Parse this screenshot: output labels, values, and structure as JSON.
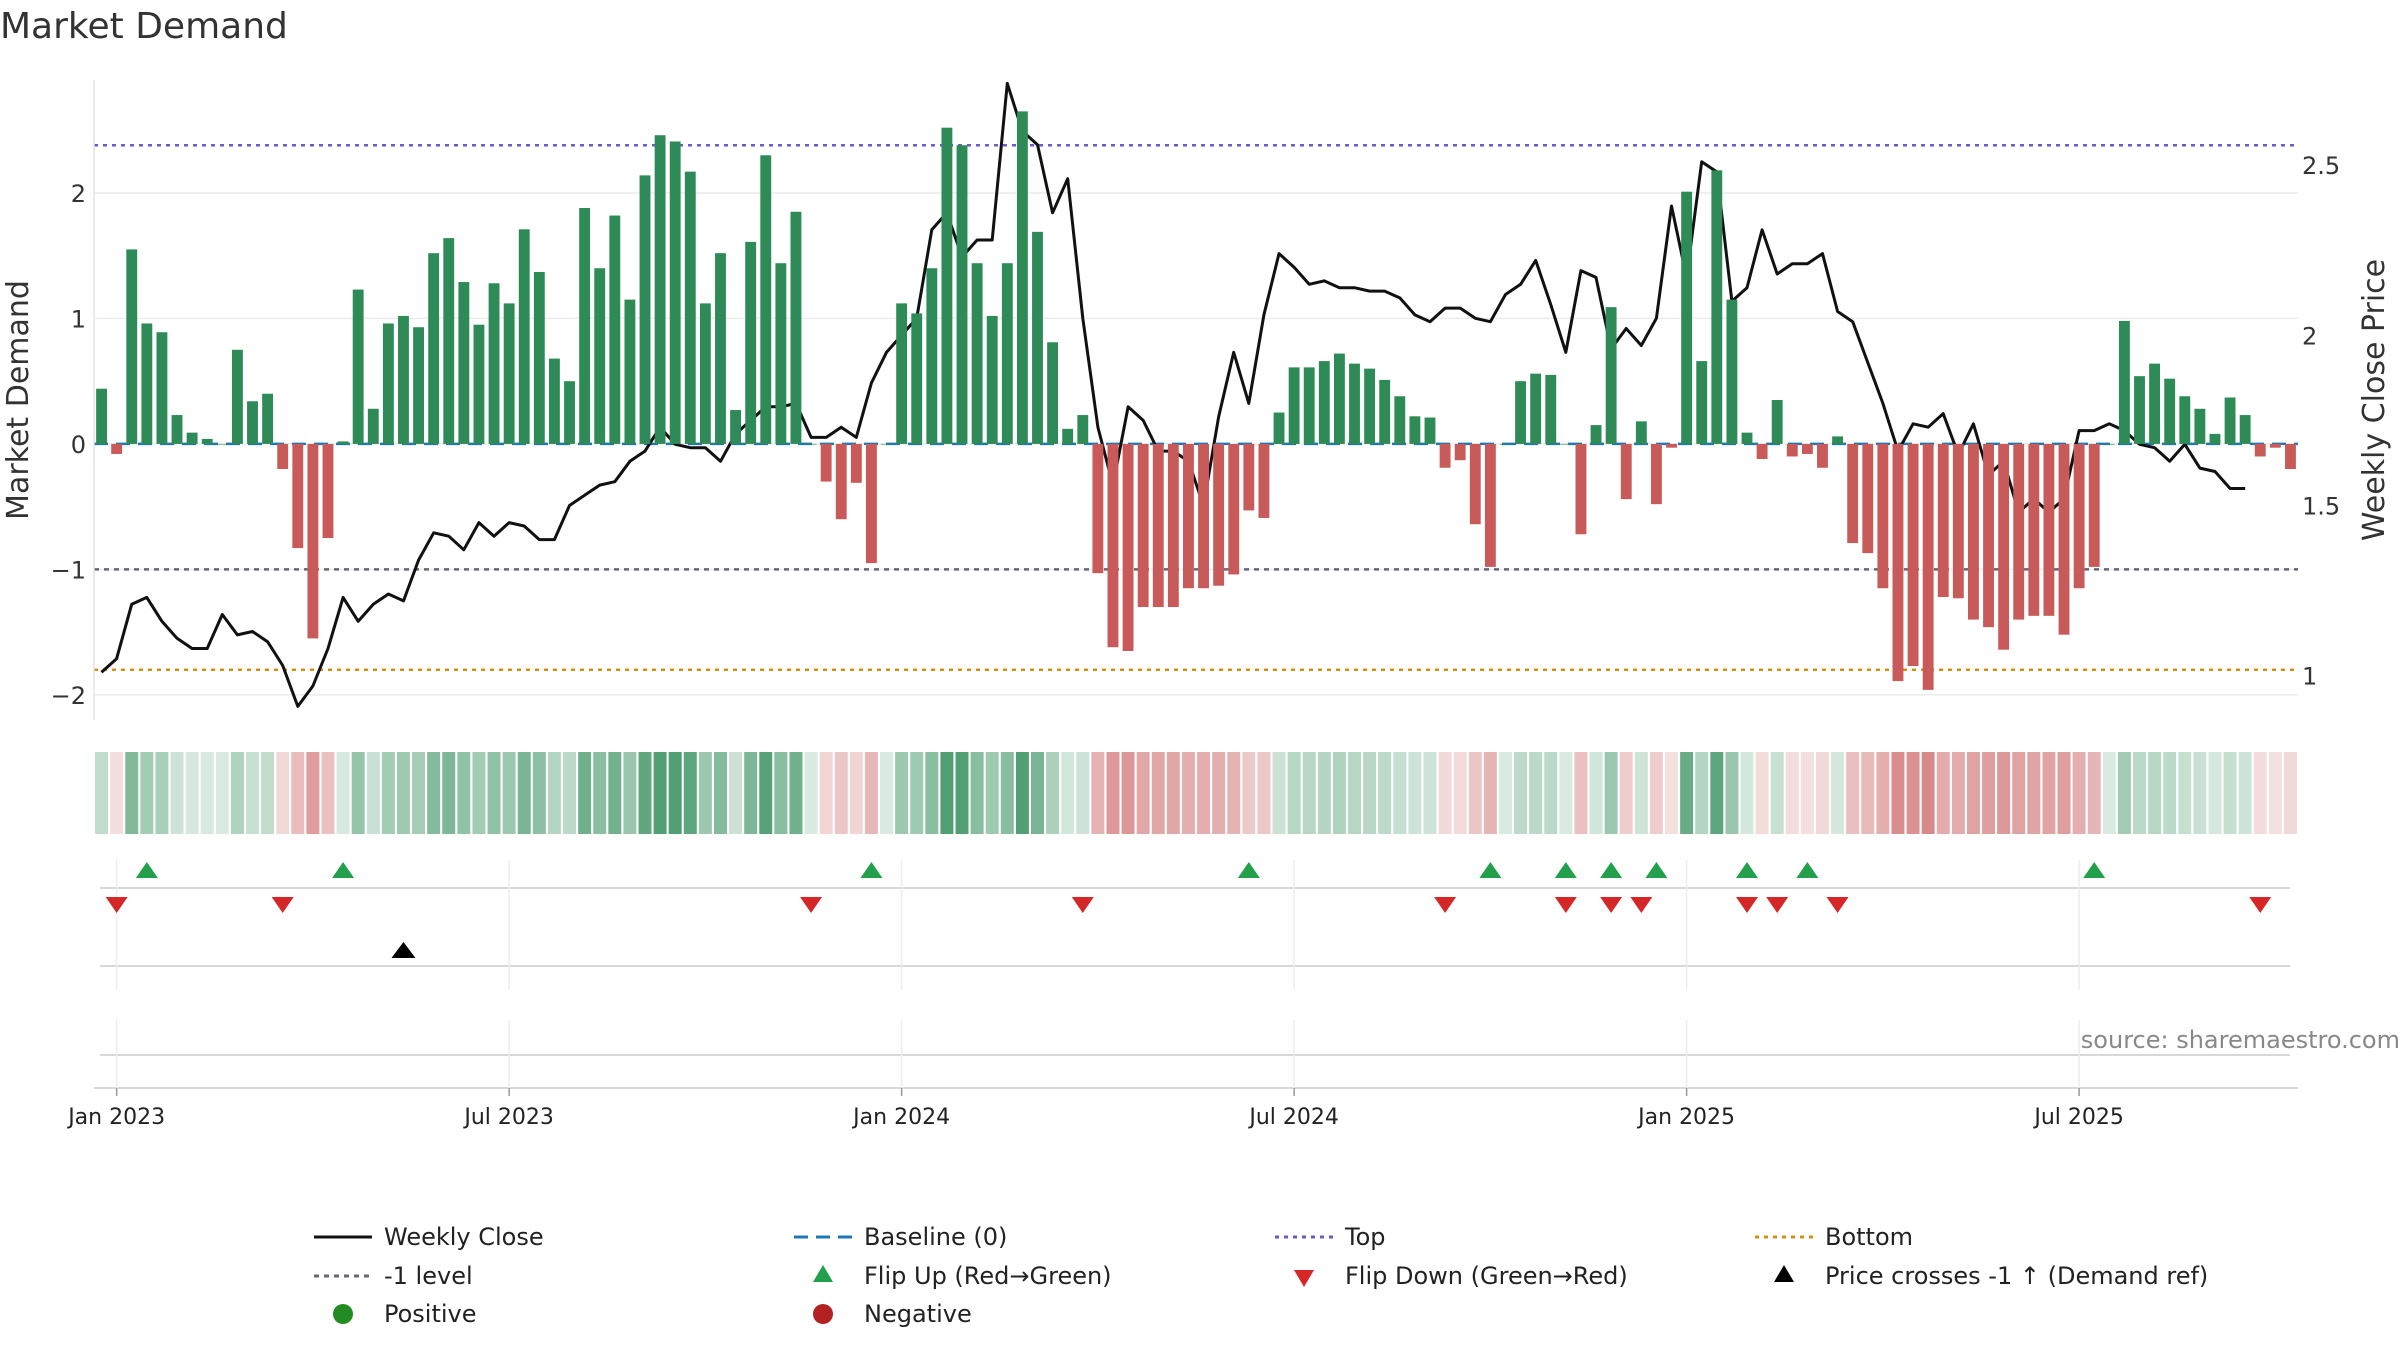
{
  "chart_data": {
    "type": "bar",
    "title": "Market Demand",
    "ylabel_left": "Market Demand",
    "ylabel_right": "Weekly Close Price",
    "ylim_left": [
      -2.2,
      2.9
    ],
    "ylim_right": [
      0.87,
      2.75
    ],
    "yticks_left": [
      -2,
      -1,
      0,
      1,
      2
    ],
    "yticks_left_labels": [
      "−2",
      "−1",
      "0",
      "1",
      "2"
    ],
    "yticks_right": [
      1,
      1.5,
      2,
      2.5
    ],
    "yticks_right_labels": [
      "1",
      "1.5",
      "2",
      "2.5"
    ],
    "x_tick_labels": [
      "Jan 2023",
      "Jul 2023",
      "Jan 2024",
      "Jul 2024",
      "Jan 2025",
      "Jul 2025"
    ],
    "x_tick_positions_week": [
      1,
      27,
      53,
      79,
      105,
      131
    ],
    "reference_lines": {
      "top": 2.38,
      "minus1": -1.0,
      "bottom": -1.8,
      "baseline": 0
    },
    "demand": [
      0.44,
      -0.08,
      1.55,
      0.96,
      0.89,
      0.23,
      0.09,
      0.04,
      0.0,
      0.75,
      0.34,
      0.4,
      -0.2,
      -0.83,
      -1.55,
      -0.75,
      0.02,
      1.23,
      0.28,
      0.96,
      1.02,
      0.93,
      1.52,
      1.64,
      1.29,
      0.95,
      1.28,
      1.12,
      1.71,
      1.37,
      0.68,
      0.5,
      1.88,
      1.4,
      1.82,
      1.15,
      2.14,
      2.46,
      2.41,
      2.17,
      1.12,
      1.52,
      0.27,
      1.61,
      2.3,
      1.44,
      1.85,
      0.0,
      -0.3,
      -0.6,
      -0.31,
      -0.95,
      0.0,
      1.12,
      1.04,
      1.4,
      2.52,
      2.38,
      1.44,
      1.02,
      1.44,
      2.65,
      1.69,
      0.81,
      0.12,
      0.23,
      -1.03,
      -1.62,
      -1.65,
      -1.3,
      -1.3,
      -1.3,
      -1.15,
      -1.15,
      -1.13,
      -1.04,
      -0.53,
      -0.59,
      0.25,
      0.61,
      0.61,
      0.66,
      0.72,
      0.64,
      0.6,
      0.51,
      0.38,
      0.22,
      0.21,
      -0.19,
      -0.13,
      -0.64,
      -0.98,
      0.0,
      0.5,
      0.56,
      0.55,
      0.0,
      -0.72,
      0.15,
      1.09,
      -0.44,
      0.18,
      -0.48,
      -0.03,
      2.01,
      0.66,
      2.18,
      1.15,
      0.09,
      -0.12,
      0.35,
      -0.1,
      -0.08,
      -0.19,
      0.06,
      -0.79,
      -0.87,
      -1.15,
      -1.89,
      -1.77,
      -1.96,
      -1.22,
      -1.23,
      -1.4,
      -1.46,
      -1.64,
      -1.4,
      -1.37,
      -1.37,
      -1.52,
      -1.15,
      -0.98,
      0.0,
      0.98,
      0.54,
      0.64,
      0.52,
      0.38,
      0.28,
      0.08,
      0.37,
      0.23,
      -0.1,
      -0.03,
      -0.2
    ],
    "close": [
      1.01,
      1.05,
      1.21,
      1.23,
      1.16,
      1.11,
      1.08,
      1.08,
      1.18,
      1.12,
      1.13,
      1.1,
      1.03,
      0.91,
      0.97,
      1.08,
      1.23,
      1.16,
      1.21,
      1.24,
      1.22,
      1.34,
      1.42,
      1.41,
      1.37,
      1.45,
      1.41,
      1.45,
      1.44,
      1.4,
      1.4,
      1.5,
      1.53,
      1.56,
      1.57,
      1.63,
      1.66,
      1.73,
      1.68,
      1.67,
      1.67,
      1.63,
      1.71,
      1.75,
      1.79,
      1.79,
      1.8,
      1.7,
      1.7,
      1.73,
      1.7,
      1.86,
      1.95,
      2.0,
      2.05,
      2.31,
      2.36,
      2.23,
      2.28,
      2.28,
      2.74,
      2.6,
      2.56,
      2.36,
      2.46,
      2.05,
      1.73,
      1.56,
      1.79,
      1.75,
      1.66,
      1.66,
      1.63,
      1.5,
      1.76,
      1.95,
      1.8,
      2.06,
      2.24,
      2.2,
      2.15,
      2.16,
      2.14,
      2.14,
      2.13,
      2.13,
      2.11,
      2.06,
      2.04,
      2.08,
      2.08,
      2.05,
      2.04,
      2.12,
      2.15,
      2.22,
      2.09,
      1.95,
      2.19,
      2.17,
      1.96,
      2.02,
      1.97,
      2.05,
      2.38,
      2.17,
      2.51,
      2.48,
      2.1,
      2.14,
      2.31,
      2.18,
      2.21,
      2.21,
      2.24,
      2.07,
      2.04,
      1.92,
      1.8,
      1.66,
      1.74,
      1.73,
      1.77,
      1.65,
      1.74,
      1.59,
      1.63,
      1.48,
      1.52,
      1.48,
      1.52,
      1.72,
      1.72,
      1.74,
      1.72,
      1.68,
      1.67,
      1.63,
      1.68,
      1.61,
      1.6,
      1.55,
      1.55
    ],
    "flip_up_weeks": [
      3,
      16,
      51,
      76,
      92,
      97,
      100,
      103,
      109,
      113,
      132
    ],
    "flip_down_weeks": [
      1,
      12,
      47,
      65,
      89,
      97,
      100,
      102,
      109,
      111,
      115,
      143
    ],
    "price_cross_weeks": [
      20
    ],
    "source": "source: sharemaestro.com"
  },
  "colors": {
    "positive_bar": "#2e8b57",
    "negative_bar": "#c85a5a",
    "close_line": "#111111",
    "baseline": "#1f77b4",
    "top_line": "#6a5acd",
    "minus1_line": "#666677",
    "bottom_line": "#d4900e",
    "flip_up": "#22a04b",
    "flip_down": "#d62728",
    "cross": "#000000",
    "positive_dot": "#228b22",
    "negative_dot": "#b22222"
  },
  "legend": {
    "weekly_close": "Weekly Close",
    "baseline": "Baseline (0)",
    "top": "Top",
    "bottom": "Bottom",
    "minus1": "-1 level",
    "flip_up": "Flip Up (Red→Green)",
    "flip_down": "Flip Down (Green→Red)",
    "price_cross": "Price crosses -1 ↑ (Demand ref)",
    "positive": "Positive",
    "negative": "Negative"
  }
}
